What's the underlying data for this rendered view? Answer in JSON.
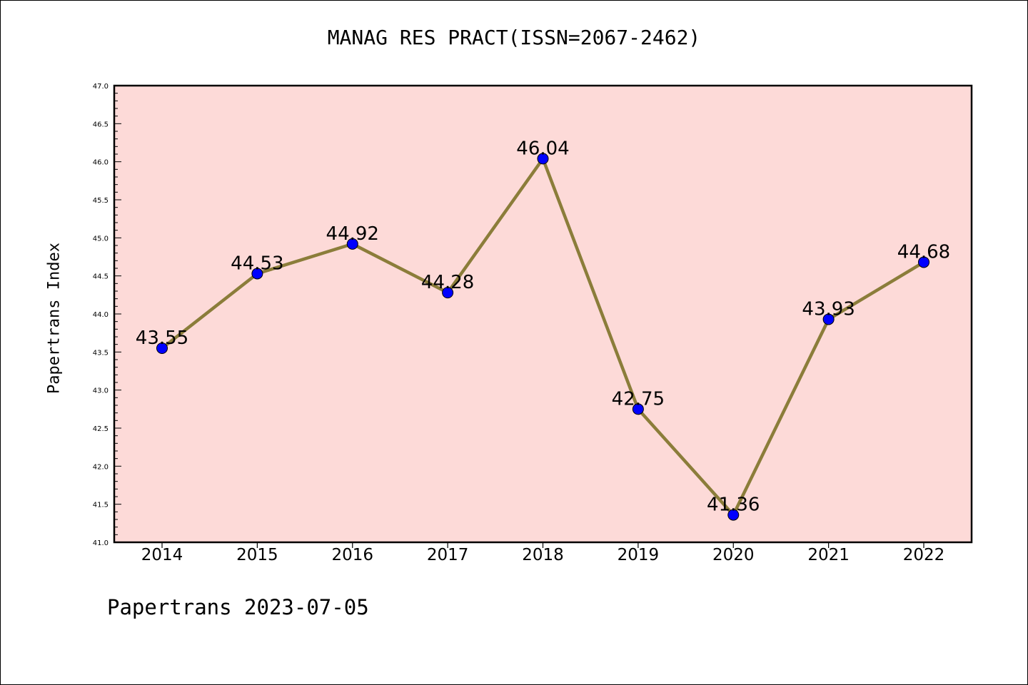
{
  "chart_data": {
    "type": "line",
    "title": "MANAG RES PRACT(ISSN=2067-2462)",
    "xlabel": "",
    "ylabel": "Papertrans Index",
    "categories": [
      "2014",
      "2015",
      "2016",
      "2017",
      "2018",
      "2019",
      "2020",
      "2021",
      "2022"
    ],
    "series": [
      {
        "values": [
          43.55,
          44.53,
          44.92,
          44.28,
          46.04,
          42.75,
          41.36,
          43.93,
          44.68
        ]
      }
    ],
    "data_labels": [
      "43.55",
      "44.53",
      "44.92",
      "44.28",
      "46.04",
      "42.75",
      "41.36",
      "43.93",
      "44.68"
    ],
    "ylim": [
      41.0,
      47.0
    ],
    "y_ticks": [
      "41.0",
      "41.5",
      "42.0",
      "42.5",
      "43.0",
      "43.5",
      "44.0",
      "44.5",
      "45.0",
      "45.5",
      "46.0",
      "46.5",
      "47.0"
    ],
    "grid": false,
    "colors": {
      "plot_background": "#fddad8",
      "line": "#8b7d3a",
      "marker": "#0000ff"
    }
  },
  "footer": "Papertrans 2023-07-05"
}
